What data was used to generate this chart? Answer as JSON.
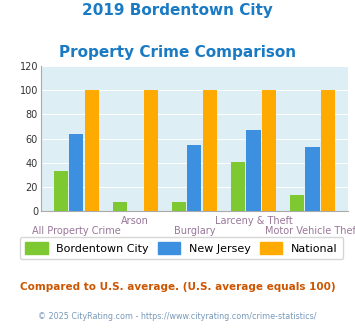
{
  "title_line1": "2019 Bordentown City",
  "title_line2": "Property Crime Comparison",
  "title_color": "#1a7bc4",
  "categories": [
    "All Property Crime",
    "Arson",
    "Burglary",
    "Larceny & Theft",
    "Motor Vehicle Theft"
  ],
  "bordentown": [
    33,
    8,
    8,
    41,
    13
  ],
  "new_jersey": [
    64,
    0,
    55,
    67,
    53
  ],
  "national": [
    100,
    100,
    100,
    100,
    100
  ],
  "color_bordentown": "#7ec832",
  "color_nj": "#3d8fe0",
  "color_national": "#ffaa00",
  "ylim": [
    0,
    120
  ],
  "yticks": [
    0,
    20,
    40,
    60,
    80,
    100,
    120
  ],
  "bg_color": "#ddeef5",
  "footer_text": "Compared to U.S. average. (U.S. average equals 100)",
  "footer_color": "#cc5500",
  "credit_text": "© 2025 CityRating.com - https://www.cityrating.com/crime-statistics/",
  "credit_color": "#7799bb",
  "legend_labels": [
    "Bordentown City",
    "New Jersey",
    "National"
  ],
  "xlabel_color": "#997799",
  "top_labels": [
    "",
    "Arson",
    "",
    "Larceny & Theft",
    ""
  ],
  "bot_labels": [
    "All Property Crime",
    "",
    "Burglary",
    "",
    "Motor Vehicle Theft"
  ]
}
